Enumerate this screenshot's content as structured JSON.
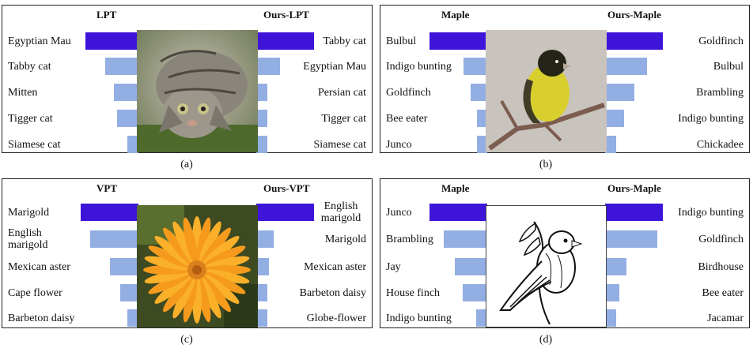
{
  "panels": [
    {
      "caption": "(a)",
      "left_title": "LPT",
      "right_title": "Ours-LPT",
      "image": "cat-photo",
      "left": [
        {
          "label": "Egyptian Mau",
          "score": 0.67,
          "top": true
        },
        {
          "label": "Tabby cat",
          "score": 0.42,
          "top": false
        },
        {
          "label": "Mitten",
          "score": 0.31,
          "top": false
        },
        {
          "label": "Tigger cat",
          "score": 0.27,
          "top": false
        },
        {
          "label": "Siamese cat",
          "score": 0.14,
          "top": false
        }
      ],
      "right": [
        {
          "label": "Tabby cat",
          "score": 0.73,
          "top": true
        },
        {
          "label": "Egyptian Mau",
          "score": 0.3,
          "top": false
        },
        {
          "label": "Persian cat",
          "score": 0.14,
          "top": false
        },
        {
          "label": "Tigger cat",
          "score": 0.14,
          "top": false
        },
        {
          "label": "Siamese cat",
          "score": 0.14,
          "top": false
        }
      ]
    },
    {
      "caption": "(b)",
      "left_title": "Maple",
      "right_title": "Ours-Maple",
      "image": "goldfinch-photo",
      "left": [
        {
          "label": "Bulbul",
          "score": 0.73,
          "top": true
        },
        {
          "label": "Indigo bunting",
          "score": 0.3,
          "top": false
        },
        {
          "label": "Goldfinch",
          "score": 0.21,
          "top": false
        },
        {
          "label": "Bee eater",
          "score": 0.13,
          "top": false
        },
        {
          "label": "Junco",
          "score": 0.13,
          "top": false
        }
      ],
      "right": [
        {
          "label": "Goldfinch",
          "score": 0.73,
          "top": true
        },
        {
          "label": "Bulbul",
          "score": 0.53,
          "top": false
        },
        {
          "label": "Brambling",
          "score": 0.37,
          "top": false
        },
        {
          "label": "Indigo bunting",
          "score": 0.24,
          "top": false
        },
        {
          "label": "Chickadee",
          "score": 0.14,
          "top": false
        }
      ]
    },
    {
      "caption": "(c)",
      "left_title": "VPT",
      "right_title": "Ours-VPT",
      "image": "marigold-photo",
      "left": [
        {
          "label": "Marigold",
          "score": 0.73,
          "top": true
        },
        {
          "label": "English marigold",
          "score": 0.61,
          "top": false
        },
        {
          "label": "Mexican aster",
          "score": 0.36,
          "top": false
        },
        {
          "label": "Cape flower",
          "score": 0.23,
          "top": false
        },
        {
          "label": "Barbeton daisy",
          "score": 0.14,
          "top": false
        }
      ],
      "right": [
        {
          "label": "English marigold",
          "score": 0.73,
          "top": true
        },
        {
          "label": "Marigold",
          "score": 0.22,
          "top": false
        },
        {
          "label": "Mexican aster",
          "score": 0.16,
          "top": false
        },
        {
          "label": "Barbeton daisy",
          "score": 0.14,
          "top": false
        },
        {
          "label": "Globe-flower",
          "score": 0.14,
          "top": false
        }
      ]
    },
    {
      "caption": "(d)",
      "left_title": "Maple",
      "right_title": "Ours-Maple",
      "image": "bird-sketch",
      "left": [
        {
          "label": "Junco",
          "score": 0.73,
          "top": true
        },
        {
          "label": "Brambling",
          "score": 0.55,
          "top": false
        },
        {
          "label": "Jay",
          "score": 0.41,
          "top": false
        },
        {
          "label": "House finch",
          "score": 0.31,
          "top": false
        },
        {
          "label": "Indigo bunting",
          "score": 0.14,
          "top": false
        }
      ],
      "right": [
        {
          "label": "Indigo bunting",
          "score": 0.73,
          "top": true
        },
        {
          "label": "Goldfinch",
          "score": 0.66,
          "top": false
        },
        {
          "label": "Birdhouse",
          "score": 0.27,
          "top": false
        },
        {
          "label": "Bee eater",
          "score": 0.18,
          "top": false
        },
        {
          "label": "Jacamar",
          "score": 0.14,
          "top": false
        }
      ]
    }
  ],
  "colors": {
    "predicted_bar": "#3f14d9",
    "other_bar": "#93aee3",
    "border": "#222222"
  }
}
